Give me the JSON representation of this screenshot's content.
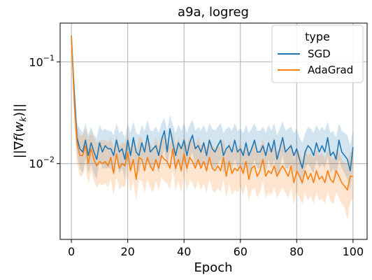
{
  "chart_data": {
    "type": "line",
    "title": "a9a, logreg",
    "xlabel": "Epoch",
    "ylabel": "||∇f(w_k)||",
    "yscale": "log",
    "xlim": [
      -4,
      105
    ],
    "ylim": [
      0.0018,
      0.24
    ],
    "grid": true,
    "legend": {
      "title": "type",
      "placement": "top-right"
    },
    "x_ticks": [
      0,
      20,
      40,
      60,
      80,
      100
    ],
    "x_tick_labels": [
      "0",
      "20",
      "40",
      "60",
      "80",
      "100"
    ],
    "y_ticks": [
      0.1,
      0.01
    ],
    "y_tick_labels": [
      "10−1",
      "10−2"
    ],
    "series": [
      {
        "name": "SGD",
        "color": "#1f77b4",
        "x": [
          0,
          1,
          2,
          3,
          4,
          5,
          6,
          7,
          8,
          9,
          10,
          11,
          12,
          13,
          14,
          15,
          16,
          17,
          18,
          19,
          20,
          21,
          22,
          23,
          24,
          25,
          26,
          27,
          28,
          29,
          30,
          31,
          32,
          33,
          34,
          35,
          36,
          37,
          38,
          39,
          40,
          41,
          42,
          43,
          44,
          45,
          46,
          47,
          48,
          49,
          50,
          51,
          52,
          53,
          54,
          55,
          56,
          57,
          58,
          59,
          60,
          61,
          62,
          63,
          64,
          65,
          66,
          67,
          68,
          69,
          70,
          71,
          72,
          73,
          74,
          75,
          76,
          77,
          78,
          79,
          80,
          81,
          82,
          83,
          84,
          85,
          86,
          87,
          88,
          89,
          90,
          91,
          92,
          93,
          94,
          95,
          96,
          97,
          98,
          99,
          100
        ],
        "y": [
          0.18,
          0.05,
          0.018,
          0.014,
          0.013,
          0.017,
          0.012,
          0.016,
          0.013,
          0.011,
          0.016,
          0.013,
          0.015,
          0.014,
          0.014,
          0.012,
          0.017,
          0.013,
          0.014,
          0.011,
          0.017,
          0.012,
          0.018,
          0.013,
          0.012,
          0.016,
          0.013,
          0.019,
          0.013,
          0.014,
          0.015,
          0.012,
          0.017,
          0.021,
          0.013,
          0.022,
          0.016,
          0.012,
          0.016,
          0.014,
          0.017,
          0.012,
          0.016,
          0.019,
          0.014,
          0.015,
          0.013,
          0.016,
          0.012,
          0.017,
          0.014,
          0.013,
          0.015,
          0.017,
          0.012,
          0.014,
          0.015,
          0.013,
          0.017,
          0.013,
          0.014,
          0.012,
          0.016,
          0.012,
          0.014,
          0.017,
          0.013,
          0.013,
          0.015,
          0.012,
          0.016,
          0.013,
          0.017,
          0.011,
          0.014,
          0.018,
          0.013,
          0.014,
          0.015,
          0.012,
          0.014,
          0.011,
          0.009,
          0.013,
          0.015,
          0.014,
          0.012,
          0.016,
          0.013,
          0.015,
          0.013,
          0.018,
          0.012,
          0.013,
          0.011,
          0.017,
          0.013,
          0.012,
          0.011,
          0.0085,
          0.0145
        ],
        "lower": [
          0.17,
          0.03,
          0.012,
          0.009,
          0.008,
          0.011,
          0.008,
          0.01,
          0.008,
          0.007,
          0.011,
          0.009,
          0.009,
          0.009,
          0.009,
          0.008,
          0.011,
          0.008,
          0.009,
          0.007,
          0.011,
          0.008,
          0.012,
          0.009,
          0.008,
          0.011,
          0.009,
          0.012,
          0.009,
          0.009,
          0.01,
          0.008,
          0.011,
          0.014,
          0.009,
          0.014,
          0.011,
          0.008,
          0.011,
          0.009,
          0.011,
          0.008,
          0.011,
          0.013,
          0.009,
          0.01,
          0.009,
          0.011,
          0.008,
          0.011,
          0.009,
          0.009,
          0.01,
          0.011,
          0.008,
          0.009,
          0.01,
          0.009,
          0.011,
          0.009,
          0.009,
          0.008,
          0.011,
          0.008,
          0.009,
          0.011,
          0.009,
          0.009,
          0.01,
          0.008,
          0.011,
          0.009,
          0.011,
          0.007,
          0.009,
          0.012,
          0.009,
          0.009,
          0.01,
          0.008,
          0.009,
          0.007,
          0.006,
          0.009,
          0.01,
          0.009,
          0.008,
          0.011,
          0.009,
          0.01,
          0.009,
          0.012,
          0.008,
          0.009,
          0.007,
          0.011,
          0.009,
          0.008,
          0.007,
          0.0055,
          0.01
        ],
        "upper": [
          0.19,
          0.07,
          0.025,
          0.022,
          0.02,
          0.025,
          0.019,
          0.023,
          0.019,
          0.018,
          0.024,
          0.021,
          0.022,
          0.021,
          0.021,
          0.019,
          0.025,
          0.02,
          0.021,
          0.018,
          0.025,
          0.02,
          0.026,
          0.02,
          0.019,
          0.024,
          0.021,
          0.027,
          0.021,
          0.021,
          0.023,
          0.02,
          0.025,
          0.028,
          0.021,
          0.03,
          0.024,
          0.02,
          0.024,
          0.021,
          0.025,
          0.02,
          0.024,
          0.027,
          0.021,
          0.023,
          0.021,
          0.024,
          0.02,
          0.025,
          0.022,
          0.021,
          0.023,
          0.025,
          0.02,
          0.022,
          0.023,
          0.021,
          0.025,
          0.021,
          0.022,
          0.02,
          0.024,
          0.02,
          0.022,
          0.025,
          0.021,
          0.021,
          0.023,
          0.02,
          0.024,
          0.021,
          0.025,
          0.019,
          0.022,
          0.026,
          0.021,
          0.022,
          0.023,
          0.02,
          0.022,
          0.018,
          0.016,
          0.02,
          0.023,
          0.022,
          0.02,
          0.024,
          0.021,
          0.023,
          0.021,
          0.026,
          0.02,
          0.021,
          0.018,
          0.025,
          0.021,
          0.02,
          0.019,
          0.015,
          0.022
        ]
      },
      {
        "name": "AdaGrad",
        "color": "#ff7f0e",
        "x": [
          0,
          1,
          2,
          3,
          4,
          5,
          6,
          7,
          8,
          9,
          10,
          11,
          12,
          13,
          14,
          15,
          16,
          17,
          18,
          19,
          20,
          21,
          22,
          23,
          24,
          25,
          26,
          27,
          28,
          29,
          30,
          31,
          32,
          33,
          34,
          35,
          36,
          37,
          38,
          39,
          40,
          41,
          42,
          43,
          44,
          45,
          46,
          47,
          48,
          49,
          50,
          51,
          52,
          53,
          54,
          55,
          56,
          57,
          58,
          59,
          60,
          61,
          62,
          63,
          64,
          65,
          66,
          67,
          68,
          69,
          70,
          71,
          72,
          73,
          74,
          75,
          76,
          77,
          78,
          79,
          80,
          81,
          82,
          83,
          84,
          85,
          86,
          87,
          88,
          89,
          90,
          91,
          92,
          93,
          94,
          95,
          96,
          97,
          98,
          99,
          100
        ],
        "y": [
          0.18,
          0.04,
          0.016,
          0.012,
          0.012,
          0.015,
          0.01,
          0.014,
          0.011,
          0.0095,
          0.0105,
          0.01,
          0.0105,
          0.0095,
          0.0115,
          0.008,
          0.0125,
          0.009,
          0.01,
          0.0095,
          0.013,
          0.0085,
          0.011,
          0.007,
          0.0115,
          0.011,
          0.0085,
          0.0115,
          0.0095,
          0.0085,
          0.011,
          0.009,
          0.012,
          0.011,
          0.0105,
          0.009,
          0.014,
          0.009,
          0.011,
          0.0085,
          0.0125,
          0.009,
          0.0115,
          0.0105,
          0.009,
          0.011,
          0.009,
          0.0105,
          0.0085,
          0.0115,
          0.009,
          0.0085,
          0.0095,
          0.0085,
          0.0115,
          0.0075,
          0.0105,
          0.008,
          0.009,
          0.0085,
          0.0095,
          0.008,
          0.0105,
          0.007,
          0.009,
          0.0095,
          0.0075,
          0.0085,
          0.011,
          0.0075,
          0.0085,
          0.008,
          0.0095,
          0.0075,
          0.0085,
          0.0095,
          0.0085,
          0.0075,
          0.0095,
          0.0065,
          0.0085,
          0.0075,
          0.0065,
          0.0085,
          0.007,
          0.008,
          0.0065,
          0.0085,
          0.007,
          0.0075,
          0.0065,
          0.0085,
          0.007,
          0.0065,
          0.0085,
          0.0075,
          0.0065,
          0.006,
          0.0055,
          0.0075,
          0.0075
        ],
        "lower": [
          0.17,
          0.025,
          0.01,
          0.0075,
          0.0075,
          0.0095,
          0.0062,
          0.0085,
          0.0068,
          0.0058,
          0.0064,
          0.0061,
          0.0064,
          0.0058,
          0.007,
          0.0048,
          0.0076,
          0.0055,
          0.0061,
          0.0058,
          0.008,
          0.0052,
          0.0067,
          0.0043,
          0.007,
          0.0067,
          0.0052,
          0.007,
          0.0058,
          0.0052,
          0.0067,
          0.0055,
          0.0073,
          0.0067,
          0.0064,
          0.0055,
          0.0085,
          0.0055,
          0.0067,
          0.0052,
          0.0076,
          0.0055,
          0.007,
          0.0064,
          0.0055,
          0.0067,
          0.0055,
          0.0064,
          0.0052,
          0.007,
          0.0055,
          0.0052,
          0.0058,
          0.0052,
          0.007,
          0.0046,
          0.0064,
          0.0049,
          0.0055,
          0.0052,
          0.0058,
          0.0049,
          0.0064,
          0.0043,
          0.0055,
          0.0058,
          0.0046,
          0.0052,
          0.0067,
          0.0046,
          0.0052,
          0.0049,
          0.0058,
          0.0046,
          0.0052,
          0.0058,
          0.0052,
          0.0046,
          0.0058,
          0.004,
          0.0052,
          0.0046,
          0.004,
          0.0052,
          0.0043,
          0.0049,
          0.004,
          0.0052,
          0.0043,
          0.0046,
          0.004,
          0.0052,
          0.0043,
          0.004,
          0.0052,
          0.0046,
          0.004,
          0.0037,
          0.0028,
          0.0042,
          0.0046
        ],
        "upper": [
          0.19,
          0.06,
          0.023,
          0.019,
          0.019,
          0.022,
          0.017,
          0.021,
          0.018,
          0.016,
          0.017,
          0.017,
          0.017,
          0.016,
          0.018,
          0.014,
          0.019,
          0.015,
          0.016,
          0.016,
          0.02,
          0.014,
          0.018,
          0.013,
          0.018,
          0.018,
          0.014,
          0.018,
          0.016,
          0.014,
          0.018,
          0.015,
          0.019,
          0.018,
          0.017,
          0.015,
          0.021,
          0.015,
          0.018,
          0.014,
          0.019,
          0.015,
          0.018,
          0.017,
          0.015,
          0.018,
          0.015,
          0.017,
          0.014,
          0.018,
          0.015,
          0.014,
          0.016,
          0.014,
          0.018,
          0.013,
          0.017,
          0.013,
          0.015,
          0.014,
          0.016,
          0.013,
          0.017,
          0.012,
          0.015,
          0.016,
          0.013,
          0.014,
          0.018,
          0.013,
          0.014,
          0.013,
          0.016,
          0.013,
          0.014,
          0.016,
          0.014,
          0.013,
          0.016,
          0.011,
          0.014,
          0.013,
          0.011,
          0.014,
          0.012,
          0.013,
          0.011,
          0.014,
          0.012,
          0.013,
          0.011,
          0.014,
          0.012,
          0.011,
          0.014,
          0.013,
          0.011,
          0.01,
          0.01,
          0.013,
          0.013
        ]
      }
    ]
  }
}
